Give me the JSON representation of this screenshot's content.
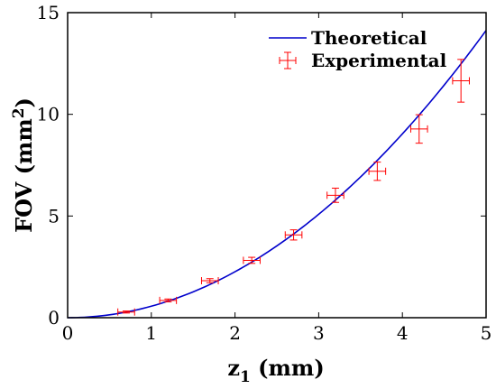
{
  "chart_data": {
    "type": "scatter",
    "xlim": [
      0,
      5
    ],
    "ylim": [
      0,
      15
    ],
    "xticks": [
      "0",
      "1",
      "2",
      "3",
      "4",
      "5"
    ],
    "yticks": [
      "0",
      "5",
      "10",
      "15"
    ],
    "xlabel": {
      "main": "z",
      "sub": "1",
      "unit": " (mm)"
    },
    "ylabel": {
      "main": "FOV (mm",
      "sup": "2",
      "close": ")"
    },
    "grid": false,
    "legend_position": "top-right",
    "series": [
      {
        "name": "Theoretical",
        "kind": "line",
        "color": "#0000cc",
        "model": "quadratic",
        "coefficient": 0.565
      },
      {
        "name": "Experimental",
        "kind": "errorbar",
        "color": "#ff0000",
        "points": [
          {
            "x": 0.7,
            "y": 0.28,
            "xerr": 0.1,
            "yerr": 0.05
          },
          {
            "x": 1.2,
            "y": 0.85,
            "xerr": 0.1,
            "yerr": 0.07
          },
          {
            "x": 1.7,
            "y": 1.82,
            "xerr": 0.1,
            "yerr": 0.1
          },
          {
            "x": 2.2,
            "y": 2.82,
            "xerr": 0.1,
            "yerr": 0.15
          },
          {
            "x": 2.7,
            "y": 4.07,
            "xerr": 0.1,
            "yerr": 0.25
          },
          {
            "x": 3.2,
            "y": 6.02,
            "xerr": 0.1,
            "yerr": 0.35
          },
          {
            "x": 3.7,
            "y": 7.2,
            "xerr": 0.1,
            "yerr": 0.45
          },
          {
            "x": 4.2,
            "y": 9.28,
            "xerr": 0.1,
            "yerr": 0.7
          },
          {
            "x": 4.7,
            "y": 11.65,
            "xerr": 0.1,
            "yerr": 1.05
          }
        ]
      }
    ]
  }
}
